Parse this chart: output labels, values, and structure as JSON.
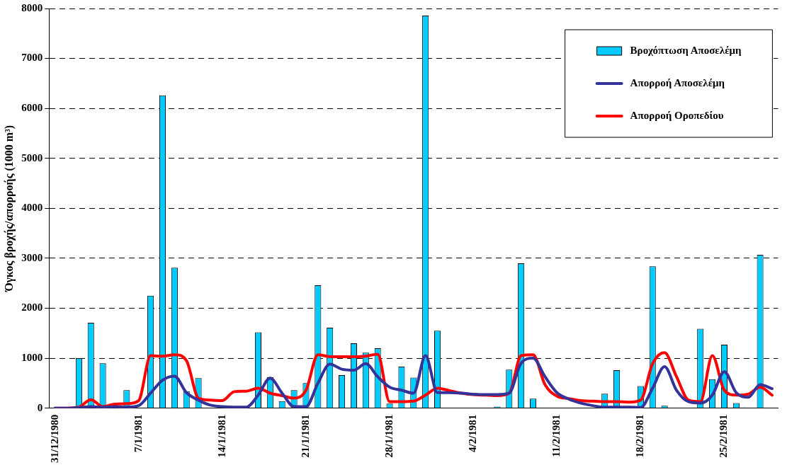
{
  "chart_data": {
    "type": "bar",
    "ylabel": "Όγκος βροχής/απορροής (1000 m³)",
    "categories": [
      "31/12/1980",
      null,
      null,
      null,
      null,
      null,
      null,
      "7/1/1981",
      null,
      null,
      null,
      null,
      null,
      null,
      "14/1/1981",
      null,
      null,
      null,
      null,
      null,
      null,
      "21/1/1981",
      null,
      null,
      null,
      null,
      null,
      null,
      "28/1/1981",
      null,
      null,
      null,
      null,
      null,
      null,
      "4/2/1981",
      null,
      null,
      null,
      null,
      null,
      null,
      "11/2/1981",
      null,
      null,
      null,
      null,
      null,
      null,
      "18/2/1981",
      null,
      null,
      null,
      null,
      null,
      null,
      "25/2/1981",
      null,
      null,
      null,
      null
    ],
    "ylim": [
      0,
      8000
    ],
    "yticks": [
      0,
      1000,
      2000,
      3000,
      4000,
      5000,
      6000,
      7000,
      8000
    ],
    "grid": "y",
    "legend": "top right",
    "marker": "none",
    "line_style": "solid",
    "series": [
      {
        "name": "Βροχόπτωση Αποσελέμη",
        "color": "#00ccff",
        "values": [
          0,
          0,
          1000,
          1710,
          900,
          0,
          360,
          0,
          2250,
          6260,
          2810,
          340,
          600,
          0,
          0,
          0,
          0,
          1520,
          620,
          140,
          360,
          500,
          2460,
          1610,
          660,
          1300,
          1110,
          1200,
          90,
          830,
          610,
          7860,
          1550,
          0,
          0,
          0,
          0,
          30,
          770,
          2900,
          190,
          0,
          0,
          0,
          0,
          0,
          290,
          760,
          0,
          440,
          2840,
          50,
          0,
          0,
          1590,
          580,
          1270,
          100,
          0,
          3070,
          0
        ]
      },
      {
        "name": "Απορροή Αποσελέμη",
        "type": "line",
        "color": "#333399",
        "values": [
          0,
          0,
          10,
          30,
          20,
          30,
          20,
          50,
          300,
          560,
          640,
          310,
          160,
          60,
          30,
          20,
          20,
          260,
          600,
          300,
          30,
          30,
          500,
          880,
          780,
          760,
          890,
          630,
          420,
          360,
          300,
          1050,
          310,
          310,
          300,
          280,
          270,
          270,
          300,
          900,
          1000,
          630,
          310,
          180,
          100,
          50,
          20,
          20,
          20,
          10,
          400,
          830,
          360,
          130,
          100,
          260,
          730,
          310,
          220,
          470,
          390
        ]
      },
      {
        "name": "Απορροή Οροπεδίου",
        "type": "line",
        "color": "#ff0000",
        "values": [
          0,
          0,
          20,
          170,
          30,
          80,
          90,
          150,
          1050,
          1040,
          1070,
          950,
          200,
          160,
          150,
          330,
          340,
          400,
          300,
          250,
          200,
          360,
          1070,
          1030,
          1030,
          1030,
          1040,
          1080,
          130,
          130,
          140,
          260,
          400,
          350,
          300,
          270,
          260,
          250,
          300,
          1050,
          1070,
          470,
          240,
          190,
          150,
          140,
          130,
          130,
          120,
          160,
          890,
          1110,
          630,
          160,
          130,
          1050,
          360,
          260,
          280,
          420,
          260
        ]
      }
    ]
  }
}
